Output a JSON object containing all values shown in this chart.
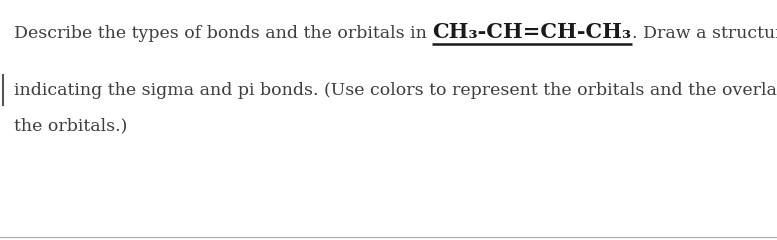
{
  "background_color": "#ffffff",
  "line1_plain": "Describe the types of bonds and the orbitals in ",
  "line1_formula": "CH₃-CH=CH-CH₃",
  "line1_after": ". Draw a structure",
  "line2": "indicating the sigma and pi bonds. (Use colors to represent the orbitals and the overlapping of",
  "line3": "the orbitals.)",
  "font_size_plain": 12.5,
  "font_size_formula": 15,
  "text_color": "#3d3d3d",
  "formula_color": "#1a1a1a",
  "bottom_line_color": "#aaaaaa",
  "left_marker_color": "#555555",
  "fig_width": 7.77,
  "fig_height": 2.4,
  "dpi": 100
}
